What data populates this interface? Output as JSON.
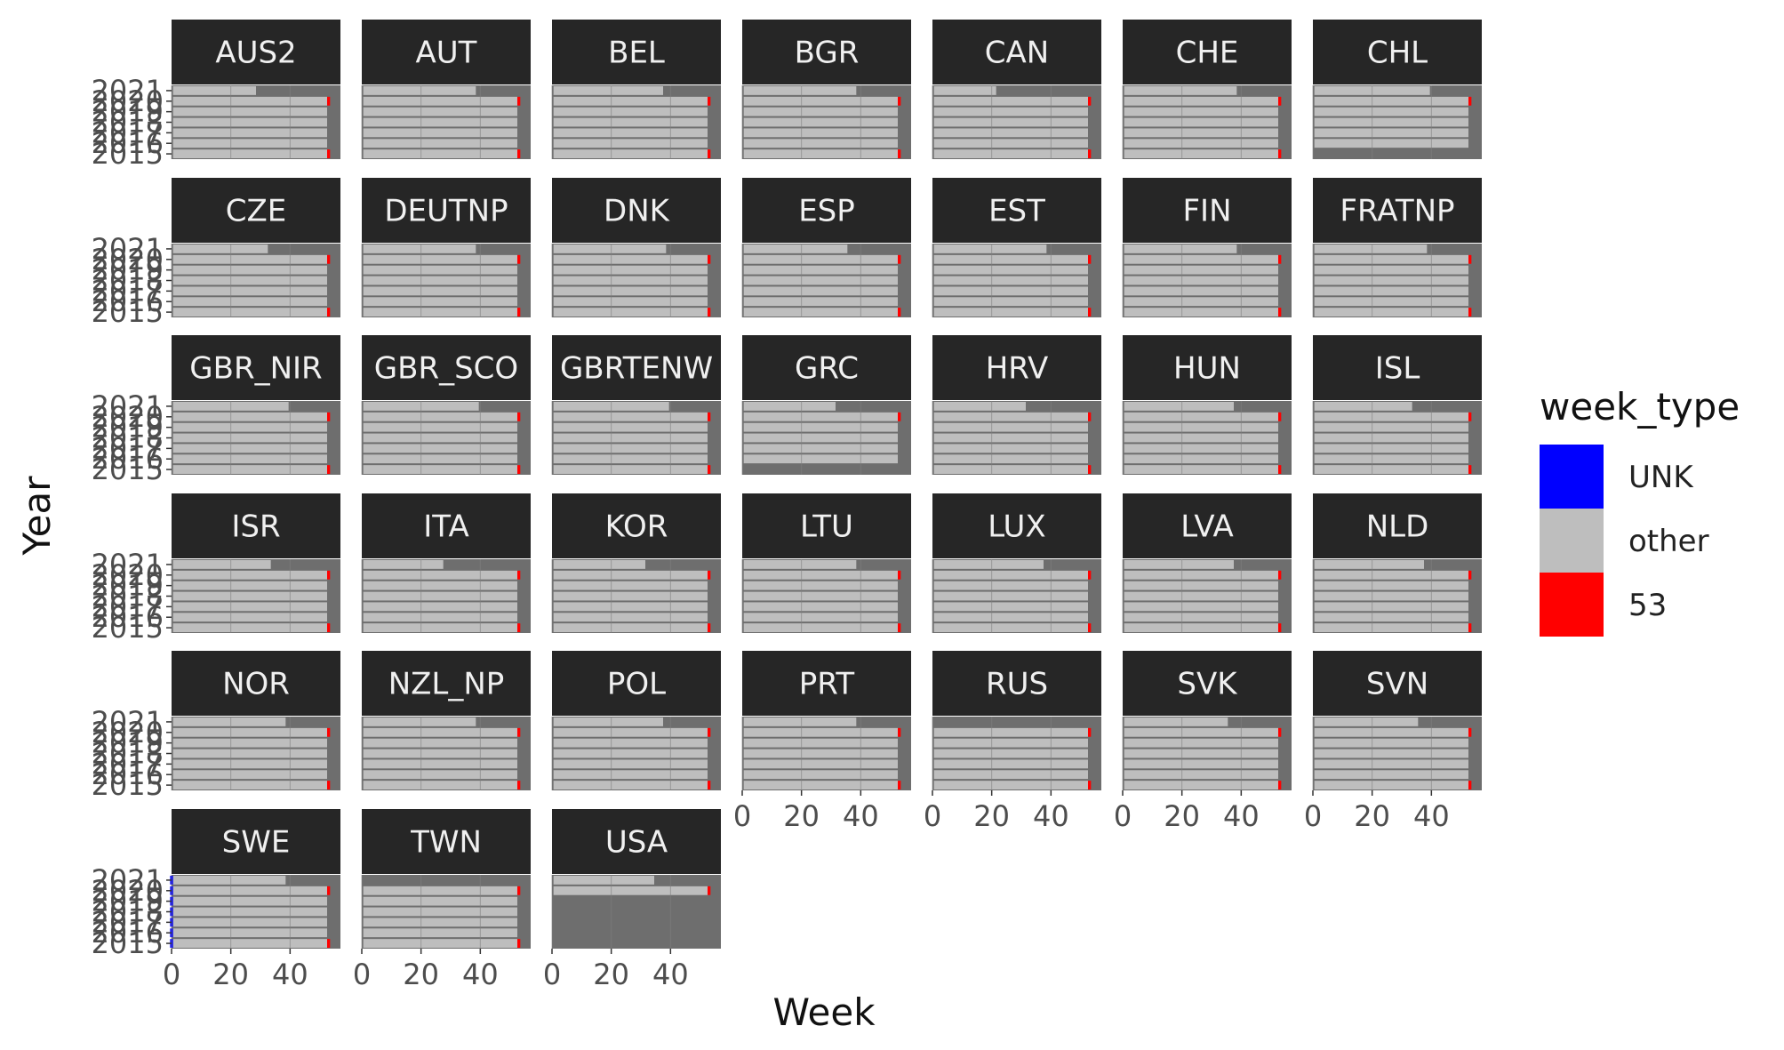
{
  "chart_data": {
    "type": "heatmap",
    "xlabel": "Week",
    "ylabel": "Year",
    "x_ticks": [
      0,
      20,
      40
    ],
    "xlim": [
      0,
      57
    ],
    "y_ticks": [
      2015,
      2016,
      2017,
      2018,
      2019,
      2020,
      2021
    ],
    "y_tick_labels": [
      "2015",
      "2016",
      "2017",
      "2018",
      "2019",
      "2020",
      "2021"
    ],
    "ylim": [
      2015,
      2021
    ],
    "grid": true,
    "legend": {
      "title": "week_type",
      "position": "right",
      "entries": [
        {
          "label": "UNK",
          "color": "#0000ff"
        },
        {
          "label": "other",
          "color": "#bebebe"
        },
        {
          "label": "53",
          "color": "#ff0000"
        }
      ]
    },
    "colors": {
      "panel_bg": "#6e6e6e",
      "strip_bg": "#262626",
      "strip_text": "#f0f0f0",
      "gridline": "#808080"
    },
    "layout": {
      "columns": 7,
      "rows": 6
    },
    "week53_years": [
      2015,
      2020
    ],
    "panels": [
      {
        "name": "AUS2",
        "weeks_2021": 28,
        "first_year": 2015,
        "unk_week0": false
      },
      {
        "name": "AUT",
        "weeks_2021": 38,
        "first_year": 2015,
        "unk_week0": false
      },
      {
        "name": "BEL",
        "weeks_2021": 37,
        "first_year": 2015,
        "unk_week0": false
      },
      {
        "name": "BGR",
        "weeks_2021": 38,
        "first_year": 2015,
        "unk_week0": false
      },
      {
        "name": "CAN",
        "weeks_2021": 21,
        "first_year": 2015,
        "unk_week0": false
      },
      {
        "name": "CHE",
        "weeks_2021": 38,
        "first_year": 2015,
        "unk_week0": false
      },
      {
        "name": "CHL",
        "weeks_2021": 39,
        "first_year": 2016,
        "unk_week0": false
      },
      {
        "name": "CZE",
        "weeks_2021": 32,
        "first_year": 2015,
        "unk_week0": false
      },
      {
        "name": "DEUTNP",
        "weeks_2021": 38,
        "first_year": 2015,
        "unk_week0": false
      },
      {
        "name": "DNK",
        "weeks_2021": 38,
        "first_year": 2015,
        "unk_week0": false
      },
      {
        "name": "ESP",
        "weeks_2021": 35,
        "first_year": 2015,
        "unk_week0": false
      },
      {
        "name": "EST",
        "weeks_2021": 38,
        "first_year": 2015,
        "unk_week0": false
      },
      {
        "name": "FIN",
        "weeks_2021": 38,
        "first_year": 2015,
        "unk_week0": false
      },
      {
        "name": "FRATNP",
        "weeks_2021": 38,
        "first_year": 2015,
        "unk_week0": false
      },
      {
        "name": "GBR_NIR",
        "weeks_2021": 39,
        "first_year": 2015,
        "unk_week0": false
      },
      {
        "name": "GBR_SCO",
        "weeks_2021": 39,
        "first_year": 2015,
        "unk_week0": false
      },
      {
        "name": "GBRTENW",
        "weeks_2021": 39,
        "first_year": 2015,
        "unk_week0": false
      },
      {
        "name": "GRC",
        "weeks_2021": 31,
        "first_year": 2016,
        "unk_week0": false
      },
      {
        "name": "HRV",
        "weeks_2021": 31,
        "first_year": 2015,
        "unk_week0": false
      },
      {
        "name": "HUN",
        "weeks_2021": 37,
        "first_year": 2015,
        "unk_week0": false
      },
      {
        "name": "ISL",
        "weeks_2021": 33,
        "first_year": 2015,
        "unk_week0": false
      },
      {
        "name": "ISR",
        "weeks_2021": 33,
        "first_year": 2015,
        "unk_week0": false
      },
      {
        "name": "ITA",
        "weeks_2021": 27,
        "first_year": 2015,
        "unk_week0": false
      },
      {
        "name": "KOR",
        "weeks_2021": 31,
        "first_year": 2015,
        "unk_week0": false
      },
      {
        "name": "LTU",
        "weeks_2021": 38,
        "first_year": 2015,
        "unk_week0": false
      },
      {
        "name": "LUX",
        "weeks_2021": 37,
        "first_year": 2015,
        "unk_week0": false
      },
      {
        "name": "LVA",
        "weeks_2021": 37,
        "first_year": 2015,
        "unk_week0": false
      },
      {
        "name": "NLD",
        "weeks_2021": 37,
        "first_year": 2015,
        "unk_week0": false
      },
      {
        "name": "NOR",
        "weeks_2021": 38,
        "first_year": 2015,
        "unk_week0": false
      },
      {
        "name": "NZL_NP",
        "weeks_2021": 38,
        "first_year": 2015,
        "unk_week0": false
      },
      {
        "name": "POL",
        "weeks_2021": 37,
        "first_year": 2015,
        "unk_week0": false
      },
      {
        "name": "PRT",
        "weeks_2021": 38,
        "first_year": 2015,
        "unk_week0": false
      },
      {
        "name": "RUS",
        "weeks_2021": 0,
        "first_year": 2015,
        "unk_week0": false
      },
      {
        "name": "SVK",
        "weeks_2021": 35,
        "first_year": 2015,
        "unk_week0": false
      },
      {
        "name": "SVN",
        "weeks_2021": 35,
        "first_year": 2015,
        "unk_week0": false
      },
      {
        "name": "SWE",
        "weeks_2021": 38,
        "first_year": 2015,
        "unk_week0": true
      },
      {
        "name": "TWN",
        "weeks_2021": 0,
        "first_year": 2015,
        "unk_week0": false
      },
      {
        "name": "USA",
        "weeks_2021": 34,
        "first_year": 2020,
        "unk_week0": false
      }
    ]
  }
}
